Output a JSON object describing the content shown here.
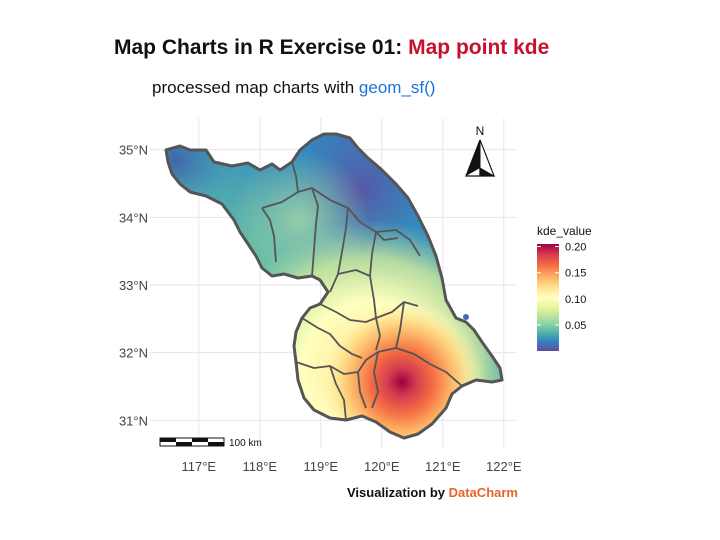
{
  "title": {
    "prefix": "Map Charts in R Exercise 01: ",
    "highlight": "Map point kde"
  },
  "subtitle": {
    "prefix": "processed map charts with ",
    "highlight": "geom_sf()"
  },
  "caption": {
    "prefix": "Visualization by ",
    "highlight": "DataCharm"
  },
  "colors": {
    "title_highlight": "#c8102e",
    "subtitle_highlight": "#1a73d9",
    "caption_highlight": "#e8632b",
    "boundary": "#555555"
  },
  "map": {
    "x_axis": {
      "ticks": [
        117,
        118,
        119,
        120,
        121,
        122
      ],
      "labels": [
        "117°E",
        "118°E",
        "119°E",
        "120°E",
        "121°E",
        "122°E"
      ]
    },
    "y_axis": {
      "ticks": [
        35,
        34,
        33,
        32,
        31
      ],
      "labels": [
        "35°N",
        "34°N",
        "33°N",
        "32°N",
        "31°N"
      ]
    },
    "xlim": [
      116.2,
      122.2
    ],
    "ylim": [
      30.65,
      35.35
    ],
    "north_arrow": {
      "label": "N"
    },
    "scale_bar": {
      "label": "100 km"
    },
    "legend": {
      "title": "kde_value",
      "breaks": [
        0.2,
        0.15,
        0.1,
        0.05
      ],
      "labels": [
        "0.20",
        "0.15",
        "0.10",
        "0.05"
      ],
      "range": [
        0.0,
        0.205
      ],
      "palette": "Spectral (reversed)",
      "colors": [
        "#5e4fa2",
        "#3288bd",
        "#66c2a5",
        "#abdda4",
        "#e6f598",
        "#ffffbf",
        "#fee08b",
        "#fdae61",
        "#f46d43",
        "#d53e4f",
        "#9e0142"
      ]
    }
  }
}
